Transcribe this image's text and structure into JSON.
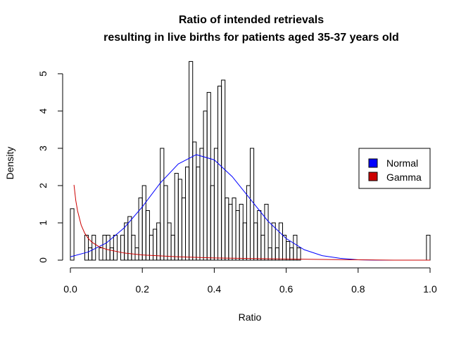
{
  "chart_data": {
    "type": "bar",
    "title_line1": "Ratio of intended retrievals",
    "title_line2": "resulting in live births for patients aged 35-37 years old",
    "xlabel": "Ratio",
    "ylabel": "Density",
    "xlim": [
      0,
      1
    ],
    "ylim": [
      0,
      5.3
    ],
    "x_ticks": [
      0.0,
      0.2,
      0.4,
      0.6,
      0.8,
      1.0
    ],
    "x_tick_labels": [
      "0.0",
      "0.2",
      "0.4",
      "0.6",
      "0.8",
      "1.0"
    ],
    "y_ticks": [
      0,
      1,
      2,
      3,
      4,
      5
    ],
    "y_tick_labels": [
      "0",
      "1",
      "2",
      "3",
      "4",
      "5"
    ],
    "bin_width": 0.01,
    "bin_start": 0,
    "hist_density": [
      1.38,
      0.0,
      0.0,
      0.0,
      0.67,
      0.33,
      0.67,
      0.0,
      0.33,
      0.67,
      0.67,
      0.33,
      0.67,
      0.0,
      0.67,
      1.0,
      1.17,
      0.67,
      0.33,
      1.67,
      2.0,
      1.33,
      0.67,
      0.83,
      1.0,
      3.0,
      2.0,
      1.0,
      0.67,
      2.33,
      2.17,
      1.67,
      2.5,
      5.33,
      3.17,
      2.5,
      3.0,
      4.0,
      4.5,
      2.0,
      3.0,
      4.67,
      4.83,
      1.67,
      1.5,
      1.67,
      1.33,
      1.5,
      1.0,
      2.0,
      3.0,
      1.0,
      1.33,
      0.67,
      1.5,
      0.33,
      1.0,
      0.33,
      1.0,
      0.67,
      0.5,
      0.33,
      0.67,
      0.33,
      0.0,
      0.0,
      0.0,
      0.0,
      0.0,
      0.0,
      0.0,
      0.0,
      0.0,
      0.0,
      0.0,
      0.0,
      0.0,
      0.0,
      0.0,
      0.0,
      0.0,
      0.0,
      0.0,
      0.0,
      0.0,
      0.0,
      0.0,
      0.0,
      0.0,
      0.0,
      0.0,
      0.0,
      0.0,
      0.0,
      0.0,
      0.0,
      0.0,
      0.0,
      0.0,
      0.67
    ],
    "series": [
      {
        "name": "Normal",
        "color": "#0000ff",
        "x": [
          0.0,
          0.05,
          0.1,
          0.15,
          0.2,
          0.25,
          0.3,
          0.35,
          0.4,
          0.45,
          0.5,
          0.55,
          0.6,
          0.65,
          0.7,
          0.75,
          0.8,
          0.85,
          0.9,
          0.95,
          1.0
        ],
        "y": [
          0.09,
          0.22,
          0.46,
          0.87,
          1.43,
          2.07,
          2.58,
          2.83,
          2.69,
          2.24,
          1.64,
          1.04,
          0.58,
          0.28,
          0.12,
          0.05,
          0.01,
          0.0,
          0.0,
          0.0,
          0.0
        ]
      },
      {
        "name": "Gamma",
        "color": "#cc0000",
        "x": [
          0.01,
          0.015,
          0.02,
          0.03,
          0.04,
          0.05,
          0.06,
          0.08,
          0.1,
          0.15,
          0.2,
          0.3,
          0.4,
          0.5,
          0.6,
          0.7,
          0.78,
          0.9,
          1.0
        ],
        "y": [
          2.02,
          1.6,
          1.32,
          0.94,
          0.72,
          0.58,
          0.48,
          0.36,
          0.29,
          0.19,
          0.14,
          0.09,
          0.06,
          0.045,
          0.03,
          0.02,
          0.01,
          0.0,
          0.0
        ]
      }
    ],
    "legend": {
      "placement": "right",
      "entries": [
        "Normal",
        "Gamma"
      ]
    }
  }
}
